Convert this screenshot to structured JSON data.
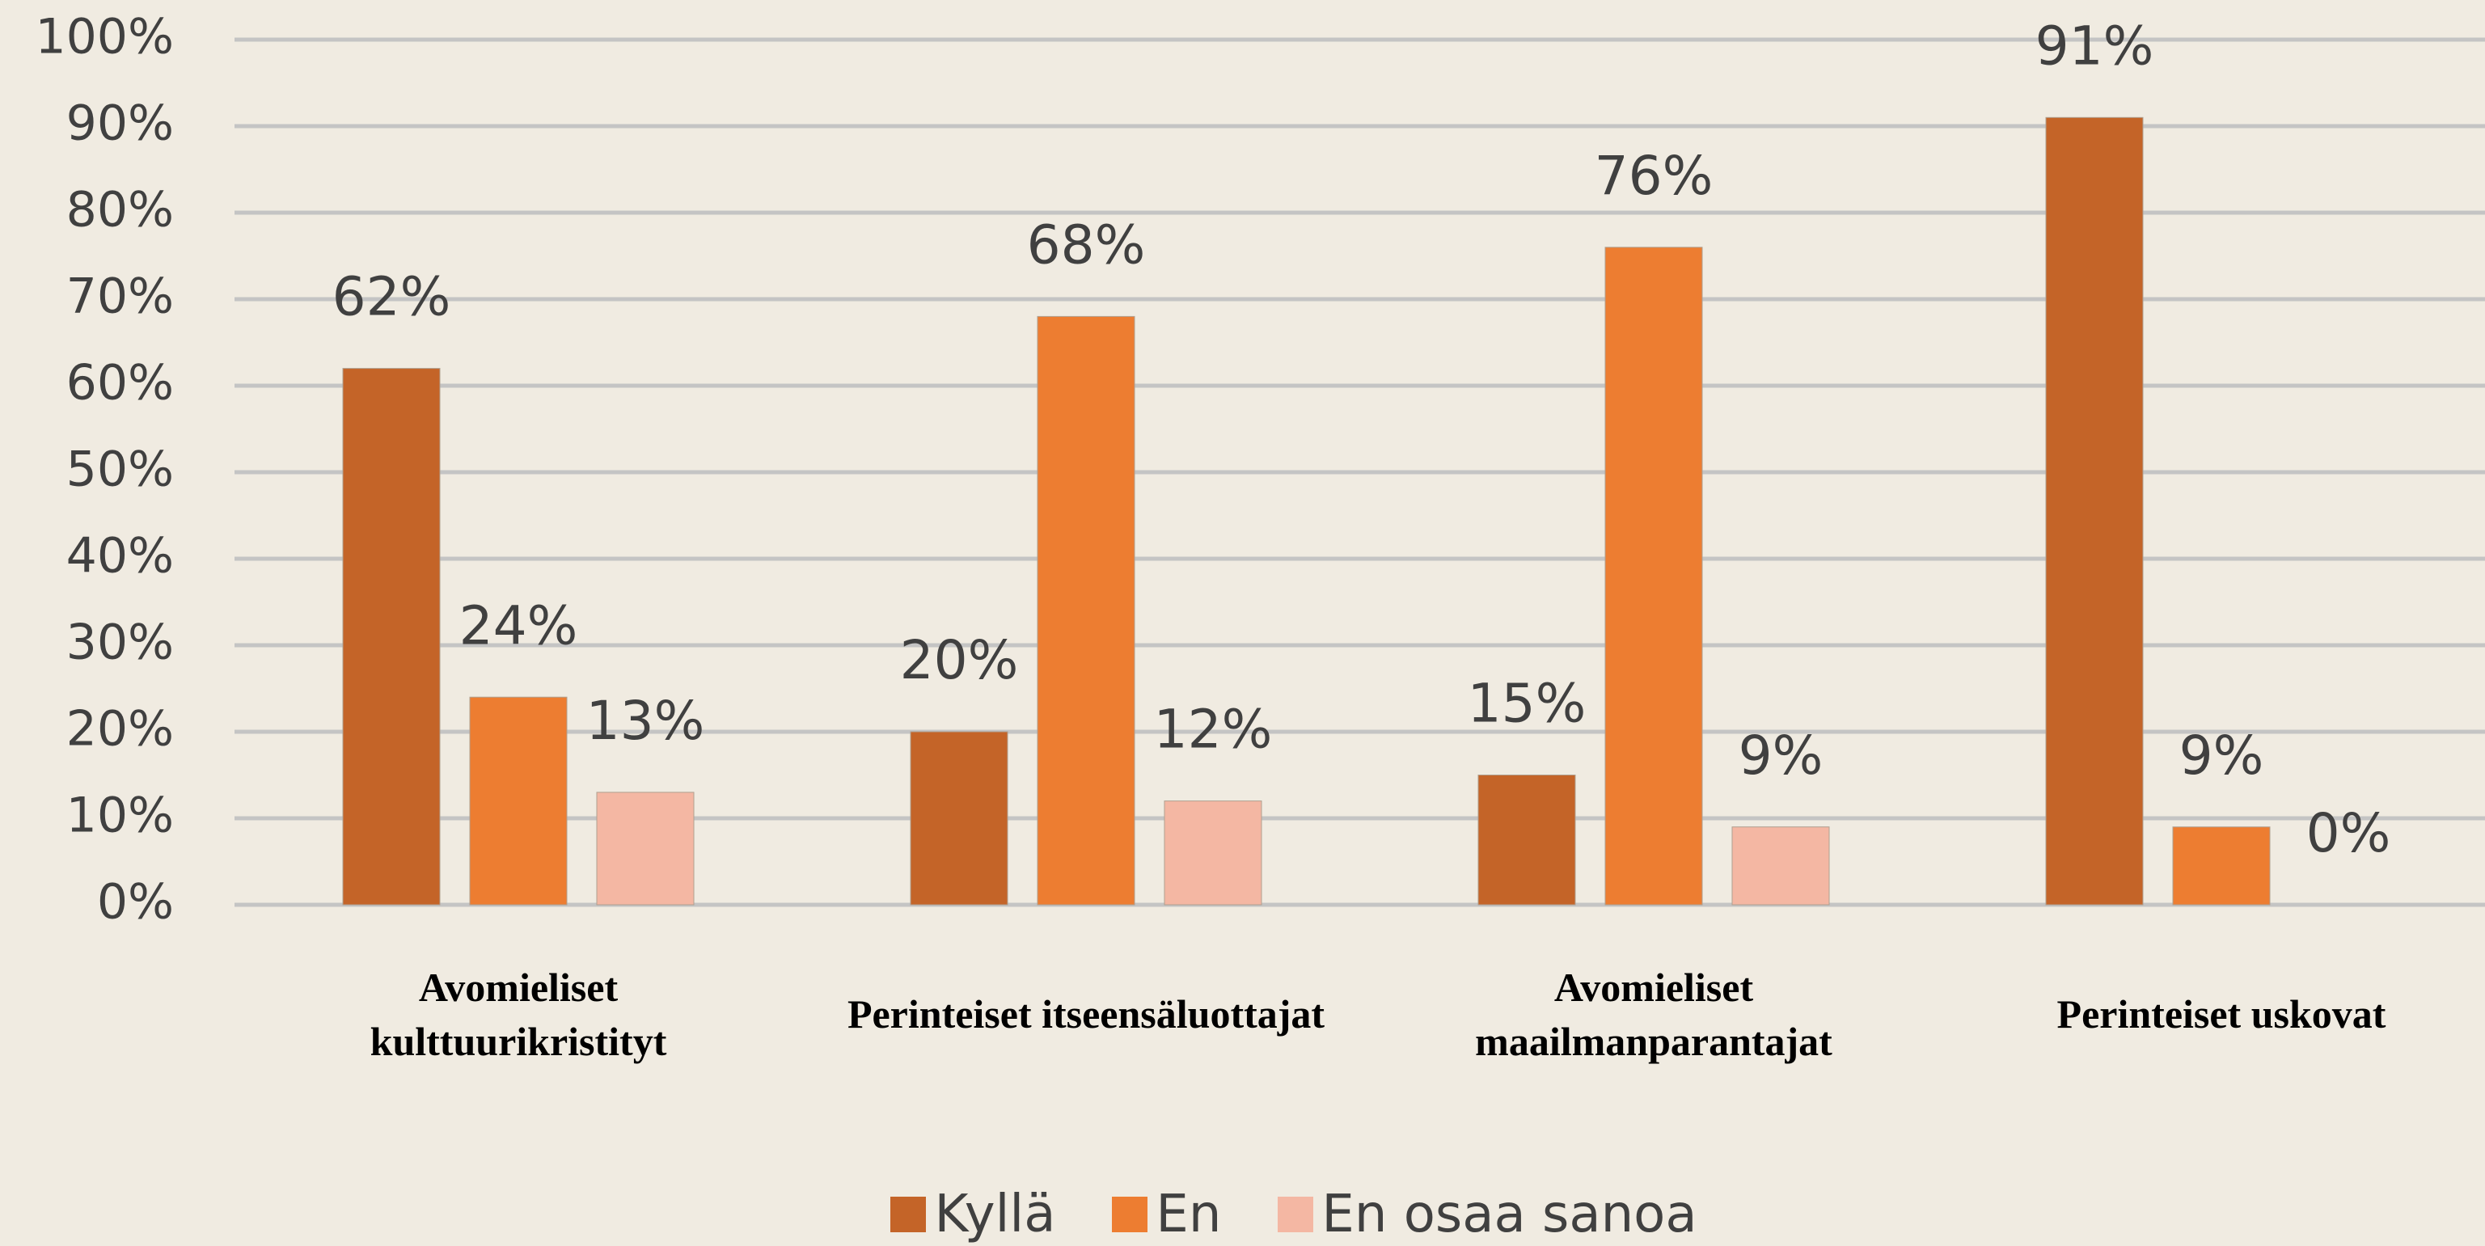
{
  "chart_data": {
    "type": "bar",
    "categories": [
      "Avomieliset kulttuurikristityt",
      "Perinteiset itseensäluottajat",
      "Avomieliset maailmanparantajat",
      "Perinteiset uskovat"
    ],
    "series": [
      {
        "name": "Kyllä",
        "color": "#c46428",
        "values": [
          62,
          20,
          15,
          91
        ],
        "value_labels": [
          "62%",
          "20%",
          "15%",
          "91%"
        ]
      },
      {
        "name": "En",
        "color": "#ed7d31",
        "values": [
          24,
          68,
          76,
          9
        ],
        "value_labels": [
          "24%",
          "68%",
          "76%",
          "9%"
        ]
      },
      {
        "name": "En osaa sanoa",
        "color": "#f4b7a3",
        "values": [
          13,
          12,
          9,
          0
        ],
        "value_labels": [
          "13%",
          "12%",
          "9%",
          "0%"
        ]
      }
    ],
    "ylim": [
      0,
      100
    ],
    "yticks": [
      {
        "value": 0,
        "label": "0%"
      },
      {
        "value": 10,
        "label": "10%"
      },
      {
        "value": 20,
        "label": "20%"
      },
      {
        "value": 30,
        "label": "30%"
      },
      {
        "value": 40,
        "label": "40%"
      },
      {
        "value": 50,
        "label": "50%"
      },
      {
        "value": 60,
        "label": "60%"
      },
      {
        "value": 70,
        "label": "70%"
      },
      {
        "value": 80,
        "label": "80%"
      },
      {
        "value": 90,
        "label": "90%"
      },
      {
        "value": 100,
        "label": "100%"
      }
    ],
    "grid": true,
    "legend": "bottom"
  }
}
